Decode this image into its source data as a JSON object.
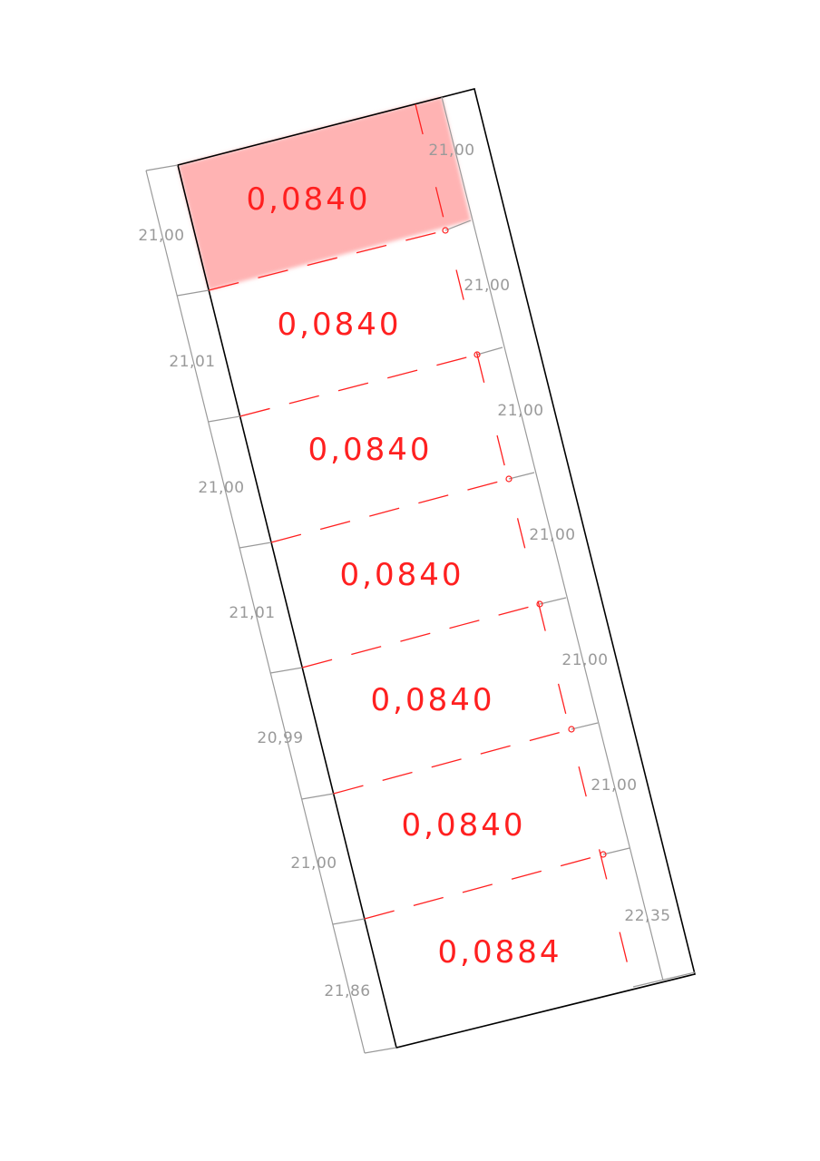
{
  "plots": [
    {
      "area": "0,0840",
      "left_dim": "21,00",
      "right_dim": "21,00",
      "highlighted": true
    },
    {
      "area": "0,0840",
      "left_dim": "21,01",
      "right_dim": "21,00",
      "highlighted": false
    },
    {
      "area": "0,0840",
      "left_dim": "21,00",
      "right_dim": "21,00",
      "highlighted": false
    },
    {
      "area": "0,0840",
      "left_dim": "21,01",
      "right_dim": "21,00",
      "highlighted": false
    },
    {
      "area": "0,0840",
      "left_dim": "20,99",
      "right_dim": "21,00",
      "highlighted": false
    },
    {
      "area": "0,0840",
      "left_dim": "21,00",
      "right_dim": "21,00",
      "highlighted": false
    },
    {
      "area": "0,0884",
      "left_dim": "21,86",
      "right_dim": "22,35",
      "highlighted": false
    }
  ],
  "colors": {
    "boundary": "#000000",
    "dimension": "#9a9a9a",
    "division": "#ff2020",
    "highlight": "#ffb3b3"
  }
}
